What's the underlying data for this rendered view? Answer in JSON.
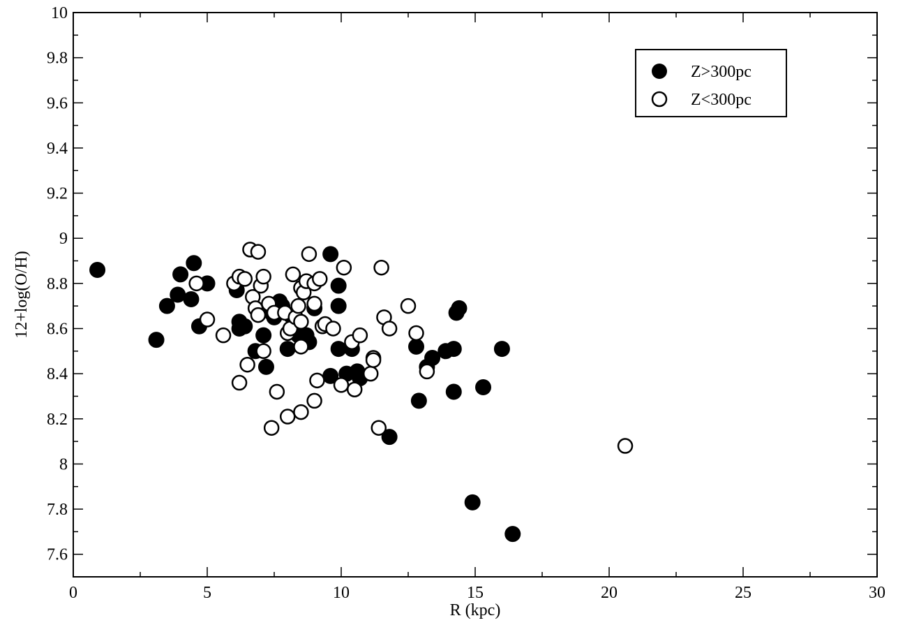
{
  "chart_data": {
    "type": "scatter",
    "title": "",
    "xlabel": "R (kpc)",
    "ylabel": "12+log(O/H)",
    "xlim": [
      0,
      30
    ],
    "ylim": [
      7.5,
      10
    ],
    "x_ticks": [
      "0",
      "5",
      "10",
      "15",
      "20",
      "25",
      "30"
    ],
    "y_ticks": [
      "7.6",
      "7.8",
      "8",
      "8.2",
      "8.4",
      "8.6",
      "8.8",
      "9",
      "9.2",
      "9.4",
      "9.6",
      "9.8",
      "10"
    ],
    "grid": false,
    "legend_position": "top-right",
    "series": [
      {
        "name": "Z>300pc",
        "marker": "filled-circle",
        "color": "#000000",
        "points": [
          [
            0.9,
            8.86
          ],
          [
            3.1,
            8.55
          ],
          [
            3.5,
            8.7
          ],
          [
            3.9,
            8.75
          ],
          [
            4.0,
            8.84
          ],
          [
            4.4,
            8.73
          ],
          [
            4.5,
            8.89
          ],
          [
            4.7,
            8.61
          ],
          [
            5.0,
            8.8
          ],
          [
            6.1,
            8.77
          ],
          [
            6.2,
            8.6
          ],
          [
            6.2,
            8.63
          ],
          [
            6.4,
            8.61
          ],
          [
            6.8,
            8.5
          ],
          [
            7.1,
            8.57
          ],
          [
            7.2,
            8.43
          ],
          [
            7.4,
            8.67
          ],
          [
            7.5,
            8.65
          ],
          [
            7.7,
            8.72
          ],
          [
            7.8,
            8.7
          ],
          [
            8.0,
            8.51
          ],
          [
            8.1,
            8.66
          ],
          [
            8.4,
            8.57
          ],
          [
            8.7,
            8.57
          ],
          [
            8.8,
            8.54
          ],
          [
            9.0,
            8.69
          ],
          [
            9.6,
            8.39
          ],
          [
            9.6,
            8.93
          ],
          [
            9.9,
            8.79
          ],
          [
            9.9,
            8.7
          ],
          [
            9.9,
            8.51
          ],
          [
            10.2,
            8.4
          ],
          [
            10.4,
            8.51
          ],
          [
            10.6,
            8.41
          ],
          [
            10.7,
            8.38
          ],
          [
            11.8,
            8.12
          ],
          [
            12.8,
            8.52
          ],
          [
            12.9,
            8.28
          ],
          [
            13.2,
            8.43
          ],
          [
            13.4,
            8.47
          ],
          [
            13.9,
            8.5
          ],
          [
            14.2,
            8.51
          ],
          [
            14.2,
            8.32
          ],
          [
            14.3,
            8.67
          ],
          [
            14.4,
            8.69
          ],
          [
            14.9,
            7.83
          ],
          [
            15.3,
            8.34
          ],
          [
            16.0,
            8.51
          ],
          [
            16.4,
            7.69
          ]
        ]
      },
      {
        "name": "Z<300pc",
        "marker": "open-circle",
        "color": "#000000",
        "points": [
          [
            4.6,
            8.8
          ],
          [
            5.0,
            8.64
          ],
          [
            5.6,
            8.57
          ],
          [
            6.0,
            8.8
          ],
          [
            6.2,
            8.83
          ],
          [
            6.2,
            8.36
          ],
          [
            6.4,
            8.82
          ],
          [
            6.5,
            8.44
          ],
          [
            6.6,
            8.95
          ],
          [
            6.7,
            8.74
          ],
          [
            6.8,
            8.69
          ],
          [
            6.9,
            8.94
          ],
          [
            6.9,
            8.66
          ],
          [
            7.0,
            8.79
          ],
          [
            7.1,
            8.83
          ],
          [
            7.1,
            8.5
          ],
          [
            7.3,
            8.71
          ],
          [
            7.4,
            8.16
          ],
          [
            7.5,
            8.67
          ],
          [
            7.6,
            8.32
          ],
          [
            7.9,
            8.67
          ],
          [
            8.0,
            8.21
          ],
          [
            8.0,
            8.58
          ],
          [
            8.1,
            8.6
          ],
          [
            8.2,
            8.84
          ],
          [
            8.3,
            8.65
          ],
          [
            8.4,
            8.7
          ],
          [
            8.5,
            8.78
          ],
          [
            8.5,
            8.63
          ],
          [
            8.5,
            8.52
          ],
          [
            8.5,
            8.23
          ],
          [
            8.6,
            8.76
          ],
          [
            8.7,
            8.81
          ],
          [
            8.8,
            8.93
          ],
          [
            9.0,
            8.8
          ],
          [
            9.0,
            8.71
          ],
          [
            9.0,
            8.28
          ],
          [
            9.1,
            8.37
          ],
          [
            9.2,
            8.82
          ],
          [
            9.3,
            8.61
          ],
          [
            9.4,
            8.62
          ],
          [
            9.7,
            8.6
          ],
          [
            10.0,
            8.35
          ],
          [
            10.1,
            8.87
          ],
          [
            10.4,
            8.54
          ],
          [
            10.5,
            8.33
          ],
          [
            10.7,
            8.57
          ],
          [
            11.1,
            8.4
          ],
          [
            11.2,
            8.47
          ],
          [
            11.2,
            8.46
          ],
          [
            11.4,
            8.16
          ],
          [
            11.5,
            8.87
          ],
          [
            11.6,
            8.65
          ],
          [
            11.8,
            8.6
          ],
          [
            12.5,
            8.7
          ],
          [
            12.8,
            8.58
          ],
          [
            13.2,
            8.41
          ],
          [
            20.6,
            8.08
          ]
        ]
      }
    ]
  }
}
